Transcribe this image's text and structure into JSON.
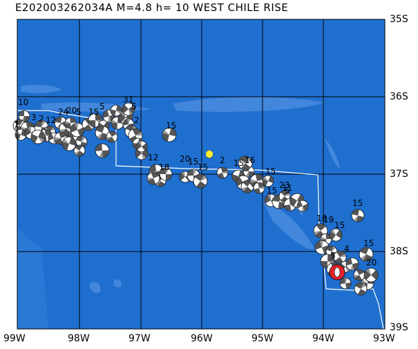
{
  "title": "E202003262034A  M=4.8  h= 10  WEST CHILE RISE",
  "map": {
    "ocean_color": "#1f6fcf",
    "ridge_color": "#4f8fe0",
    "grid_color": "#000000",
    "plate_boundary_color": "#ffffff",
    "main_event_color": "#e8222a",
    "epicenter_marker_color": "#ffee33",
    "lon_range": [
      -99,
      -93
    ],
    "lat_range": [
      -39,
      -35
    ]
  },
  "lat_labels": [
    "35S",
    "36S",
    "37S",
    "38S",
    "39S"
  ],
  "lon_labels": [
    "99W",
    "98W",
    "97W",
    "96W",
    "95W",
    "94W",
    "93W"
  ],
  "beachball_labels": [
    "10",
    "1",
    "3",
    "2",
    "12",
    "24",
    "20",
    "5",
    "15",
    "5",
    "31",
    "5",
    "2",
    "15",
    "12",
    "18",
    "20",
    "15",
    "15",
    "2",
    "15",
    "16",
    "15",
    "15",
    "23",
    "11",
    "5",
    "18",
    "19",
    "15",
    "15",
    "4",
    "5",
    "15",
    "20"
  ]
}
